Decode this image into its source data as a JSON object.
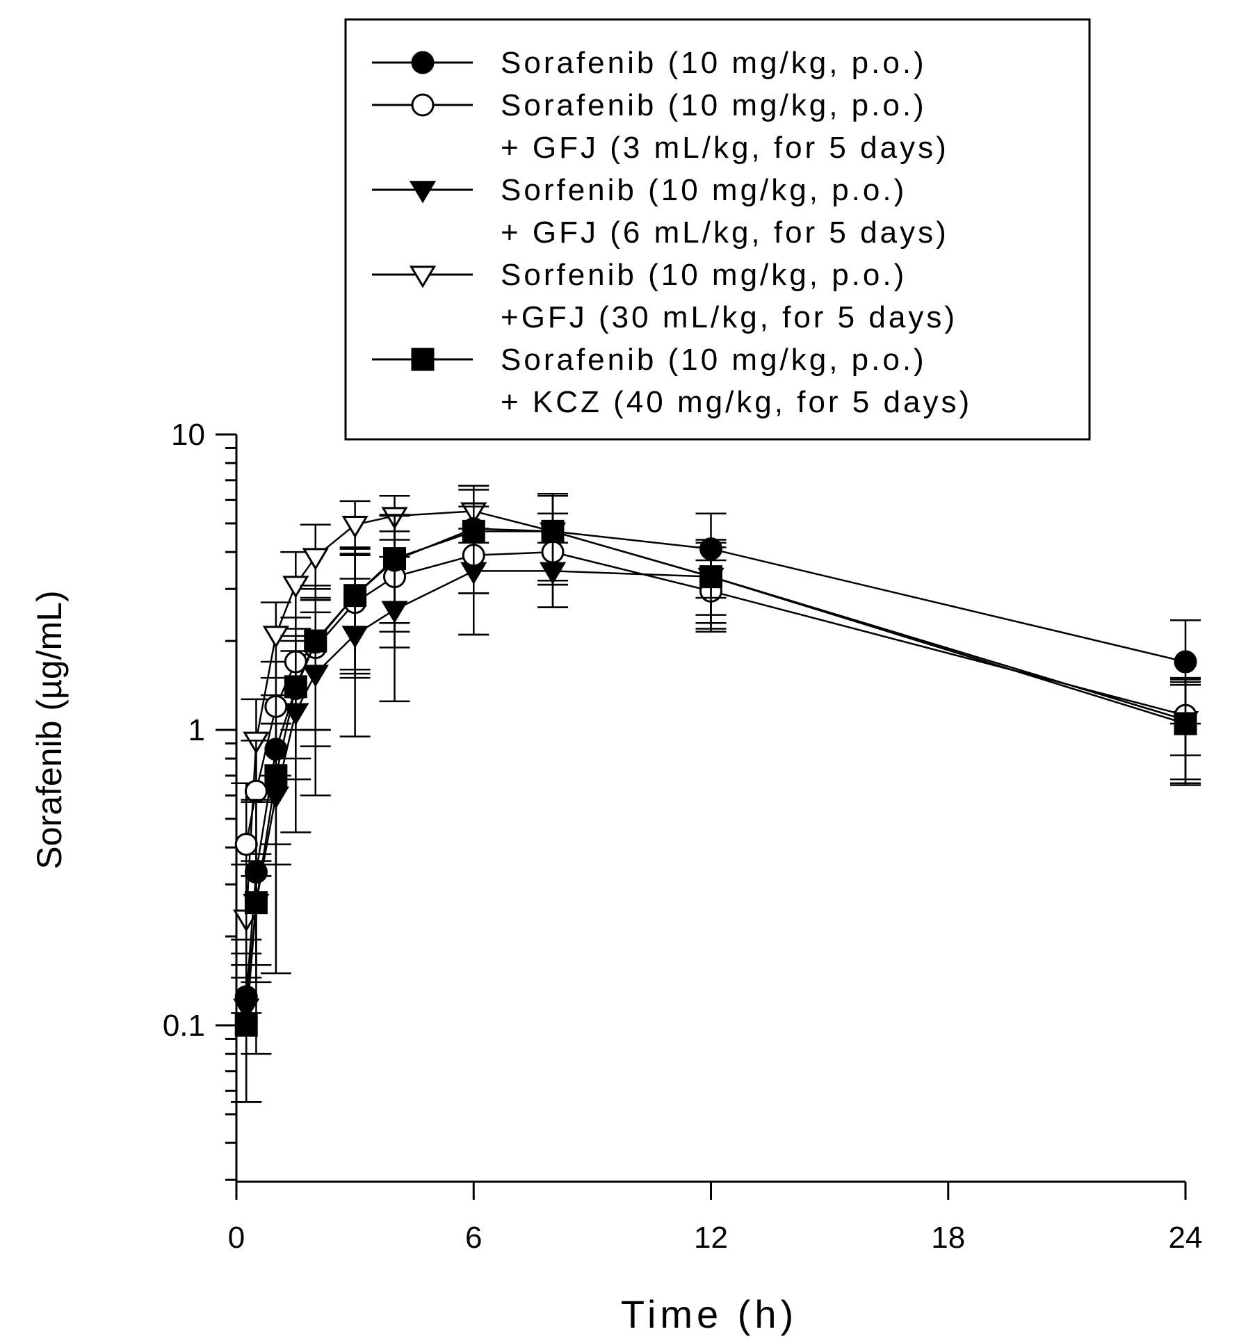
{
  "chart_data": {
    "type": "line",
    "title": "",
    "xlabel": "Time (h)",
    "ylabel": "Sorafenib (µg/mL)",
    "xscale": "linear",
    "yscale": "log",
    "xlim": [
      0,
      24
    ],
    "ylim": [
      0.03,
      10
    ],
    "xticks": [
      0,
      6,
      12,
      18,
      24
    ],
    "xtick_labels": [
      "0",
      "6",
      "12",
      "18",
      "24"
    ],
    "yticks": [
      0.1,
      1,
      10
    ],
    "ytick_labels": [
      "0.1",
      "1",
      "10"
    ],
    "grid": false,
    "legend_position": "top-right",
    "series": [
      {
        "name": "Sorafenib (10 mg/kg, p.o.)",
        "legend_lines": [
          "Sorafenib (10 mg/kg, p.o.)"
        ],
        "marker": "circle",
        "fill": "filled",
        "x": [
          0.25,
          0.5,
          1,
          1.5,
          2,
          3,
          4,
          6,
          8,
          12,
          24
        ],
        "y": [
          0.125,
          0.33,
          0.86,
          1.38,
          1.98,
          2.85,
          3.75,
          4.8,
          4.7,
          4.1,
          1.7
        ],
        "err": [
          0.07,
          0.25,
          0.45,
          0.7,
          1.1,
          1.3,
          1.6,
          1.9,
          1.6,
          1.3,
          0.65
        ]
      },
      {
        "name": "Sorafenib (10 mg/kg, p.o.) + GFJ (3 mL/kg, for 5 days)",
        "legend_lines": [
          "Sorafenib (10 mg/kg, p.o.)",
          "+ GFJ (3 mL/kg, for 5 days)"
        ],
        "marker": "circle",
        "fill": "open",
        "x": [
          0.25,
          0.5,
          1,
          1.5,
          2,
          3,
          4,
          6,
          8,
          12,
          24
        ],
        "y": [
          0.41,
          0.62,
          1.2,
          1.7,
          1.9,
          2.7,
          3.3,
          3.9,
          4.0,
          2.95,
          1.12
        ],
        "err": [
          0.25,
          0.3,
          0.5,
          0.7,
          0.9,
          1.2,
          1.4,
          1.8,
          1.4,
          0.8,
          0.3
        ]
      },
      {
        "name": "Sorfenib (10 mg/kg, p.o.) + GFJ (6 mL/kg, for 5 days)",
        "legend_lines": [
          "Sorfenib (10 mg/kg, p.o.)",
          "+ GFJ (6 mL/kg, for 5 days)"
        ],
        "marker": "triangle-down",
        "fill": "filled",
        "x": [
          0.25,
          0.5,
          1,
          1.5,
          2,
          3,
          4,
          6,
          8,
          12,
          24
        ],
        "y": [
          0.115,
          0.26,
          0.6,
          1.15,
          1.55,
          2.1,
          2.55,
          3.45,
          3.45,
          3.3,
          1.08
        ],
        "err": [
          0.06,
          0.12,
          0.45,
          0.7,
          0.95,
          1.15,
          1.3,
          1.35,
          0.85,
          0.85,
          0.42
        ]
      },
      {
        "name": "Sorfenib (10 mg/kg, p.o.) +GFJ (30 mL/kg, for 5 days)",
        "legend_lines": [
          "Sorfenib (10 mg/kg, p.o.)",
          "+GFJ (30 mL/kg, for 5 days)"
        ],
        "marker": "triangle-down",
        "fill": "open",
        "x": [
          0.25,
          0.5,
          1,
          1.5,
          2,
          3,
          4,
          6,
          8,
          12,
          24
        ],
        "y": [
          0.23,
          0.92,
          2.1,
          3.1,
          3.85,
          4.95,
          5.3,
          5.5,
          4.7,
          3.3,
          1.08
        ],
        "err": [
          0.12,
          0.35,
          0.6,
          0.9,
          1.1,
          1.0,
          0.9,
          1.2,
          1.5,
          1.0,
          0.4
        ]
      },
      {
        "name": "Sorafenib (10 mg/kg, p.o.) + KCZ (40 mg/kg, for 5 days)",
        "legend_lines": [
          "Sorafenib (10 mg/kg, p.o.)",
          "+ KCZ (40 mg/kg, for 5 days)"
        ],
        "marker": "square",
        "fill": "filled",
        "x": [
          0.25,
          0.5,
          1,
          1.5,
          2,
          3,
          4,
          6,
          8,
          12,
          24
        ],
        "y": [
          0.1,
          0.26,
          0.7,
          1.4,
          2.0,
          2.85,
          3.8,
          4.7,
          4.7,
          3.3,
          1.05
        ],
        "err": [
          0.045,
          0.1,
          0.35,
          0.6,
          1.0,
          1.25,
          1.5,
          1.8,
          1.6,
          1.1,
          0.4
        ]
      }
    ]
  }
}
